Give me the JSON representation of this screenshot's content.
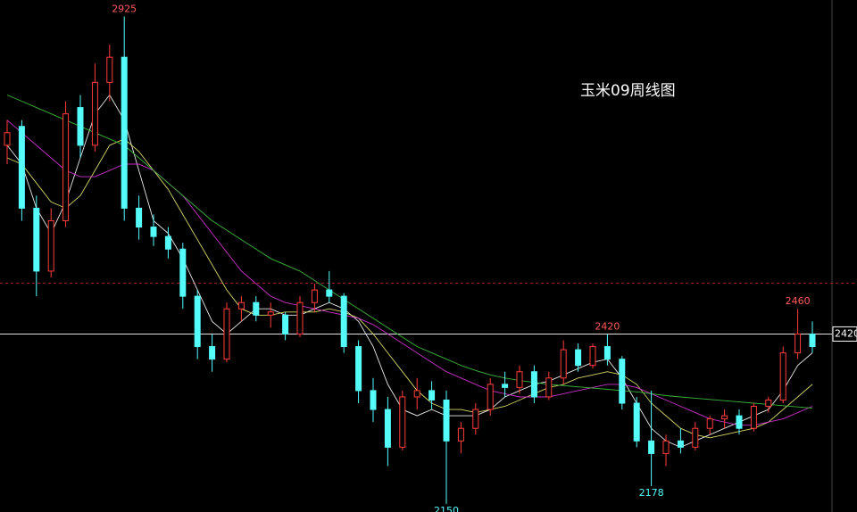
{
  "chart_data": {
    "type": "candlestick",
    "title": "玉米09周线图",
    "ylim": [
      2137,
      2951
    ],
    "up_color": "#ff3c3c",
    "down_color": "#54fcfc",
    "open": [
      2720,
      2750,
      2620,
      2520,
      2600,
      2780,
      2720,
      2820,
      2860,
      2620,
      2590,
      2575,
      2555,
      2480,
      2400,
      2380,
      2460,
      2470,
      2450,
      2450,
      2420,
      2470,
      2490,
      2480,
      2400,
      2330,
      2300,
      2240,
      2320,
      2330,
      2315,
      2250,
      2270,
      2300,
      2340,
      2335,
      2360,
      2320,
      2350,
      2395,
      2370,
      2400,
      2380,
      2310,
      2250,
      2230,
      2250,
      2240,
      2270,
      2285,
      2290,
      2270,
      2305,
      2315,
      2390,
      2420
    ],
    "high": [
      2760,
      2760,
      2640,
      2620,
      2790,
      2800,
      2850,
      2880,
      2925,
      2640,
      2610,
      2590,
      2565,
      2490,
      2420,
      2470,
      2480,
      2480,
      2470,
      2455,
      2480,
      2500,
      2520,
      2485,
      2410,
      2350,
      2320,
      2330,
      2350,
      2345,
      2330,
      2280,
      2310,
      2350,
      2360,
      2370,
      2370,
      2360,
      2410,
      2405,
      2405,
      2420,
      2385,
      2320,
      2330,
      2260,
      2270,
      2280,
      2290,
      2300,
      2300,
      2310,
      2320,
      2400,
      2460,
      2440
    ],
    "low": [
      2690,
      2600,
      2480,
      2510,
      2590,
      2700,
      2710,
      2790,
      2600,
      2570,
      2560,
      2540,
      2460,
      2380,
      2360,
      2375,
      2440,
      2440,
      2430,
      2410,
      2415,
      2455,
      2470,
      2390,
      2310,
      2280,
      2210,
      2235,
      2300,
      2300,
      2150,
      2230,
      2260,
      2290,
      2320,
      2325,
      2310,
      2315,
      2340,
      2360,
      2365,
      2370,
      2300,
      2240,
      2178,
      2210,
      2230,
      2235,
      2260,
      2270,
      2260,
      2265,
      2295,
      2310,
      2380,
      2390
    ],
    "close": [
      2740,
      2620,
      2520,
      2600,
      2770,
      2720,
      2820,
      2860,
      2620,
      2590,
      2575,
      2555,
      2480,
      2400,
      2380,
      2460,
      2470,
      2450,
      2455,
      2420,
      2470,
      2490,
      2480,
      2400,
      2330,
      2300,
      2240,
      2320,
      2330,
      2315,
      2250,
      2270,
      2300,
      2340,
      2335,
      2360,
      2320,
      2350,
      2395,
      2370,
      2400,
      2380,
      2310,
      2250,
      2230,
      2250,
      2240,
      2270,
      2285,
      2290,
      2270,
      2305,
      2315,
      2390,
      2420,
      2400
    ],
    "lines": [
      {
        "color": "#e8e8e8",
        "values": [
          2720,
          2690,
          2620,
          2580,
          2630,
          2700,
          2770,
          2800,
          2760,
          2680,
          2600,
          2580,
          2540,
          2490,
          2440,
          2420,
          2440,
          2460,
          2460,
          2450,
          2450,
          2460,
          2470,
          2460,
          2440,
          2400,
          2340,
          2300,
          2290,
          2300,
          2290,
          2290,
          2290,
          2300,
          2320,
          2330,
          2340,
          2345,
          2355,
          2365,
          2375,
          2380,
          2350,
          2310,
          2270,
          2250,
          2240,
          2250,
          2260,
          2270,
          2280,
          2290,
          2300,
          2330,
          2370,
          2390
        ]
      },
      {
        "color": "#d6d66a",
        "values": [
          2700,
          2690,
          2660,
          2630,
          2620,
          2640,
          2680,
          2720,
          2730,
          2710,
          2680,
          2650,
          2610,
          2570,
          2530,
          2490,
          2460,
          2450,
          2450,
          2455,
          2455,
          2455,
          2460,
          2455,
          2445,
          2420,
          2390,
          2360,
          2330,
          2310,
          2300,
          2300,
          2295,
          2300,
          2305,
          2315,
          2325,
          2335,
          2340,
          2350,
          2355,
          2360,
          2355,
          2340,
          2310,
          2290,
          2270,
          2260,
          2255,
          2260,
          2265,
          2270,
          2280,
          2300,
          2320,
          2340
        ]
      },
      {
        "color": "#c832c8",
        "values": [
          2760,
          2740,
          2720,
          2700,
          2680,
          2670,
          2670,
          2680,
          2690,
          2690,
          2680,
          2660,
          2640,
          2610,
          2580,
          2550,
          2520,
          2500,
          2480,
          2470,
          2465,
          2460,
          2455,
          2450,
          2445,
          2435,
          2420,
          2405,
          2390,
          2375,
          2360,
          2350,
          2340,
          2330,
          2325,
          2320,
          2320,
          2320,
          2325,
          2330,
          2335,
          2340,
          2340,
          2335,
          2325,
          2315,
          2305,
          2295,
          2285,
          2280,
          2275,
          2275,
          2280,
          2285,
          2295,
          2305
        ]
      },
      {
        "color": "#3cb43c",
        "values": [
          2800,
          2790,
          2780,
          2770,
          2760,
          2750,
          2740,
          2730,
          2720,
          2700,
          2680,
          2660,
          2640,
          2620,
          2600,
          2585,
          2570,
          2555,
          2540,
          2530,
          2520,
          2505,
          2490,
          2475,
          2460,
          2445,
          2430,
          2415,
          2400,
          2390,
          2380,
          2370,
          2362,
          2355,
          2350,
          2346,
          2343,
          2340,
          2338,
          2336,
          2334,
          2332,
          2330,
          2328,
          2325,
          2322,
          2320,
          2318,
          2316,
          2314,
          2312,
          2310,
          2308,
          2306,
          2304,
          2302
        ]
      }
    ],
    "annotations": [
      {
        "index": 8,
        "value": 2925,
        "color": "#ff5a5a",
        "at": "high"
      },
      {
        "index": 30,
        "value": 2150,
        "color": "#54fcfc",
        "at": "low"
      },
      {
        "index": 41,
        "value": 2420,
        "color": "#ff5a5a",
        "at": "high"
      },
      {
        "index": 44,
        "value": 2178,
        "color": "#54fcfc",
        "at": "low"
      },
      {
        "index": 54,
        "value": 2460,
        "color": "#ff5a5a",
        "at": "high"
      }
    ],
    "reference_line": {
      "value": 2501,
      "color": "#b02020",
      "style": "dashed"
    },
    "price_line": {
      "value": 2420,
      "color": "#ffffff"
    }
  }
}
